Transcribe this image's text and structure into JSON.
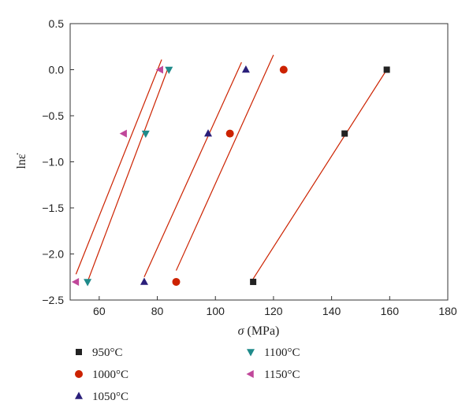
{
  "chart_data": {
    "type": "scatter",
    "xlabel": "σ (MPa)",
    "ylabel": "lnε̇",
    "xlim": [
      50,
      180
    ],
    "ylim": [
      -2.5,
      0.5
    ],
    "x_ticks": [
      60,
      80,
      100,
      120,
      140,
      160,
      180
    ],
    "y_ticks": [
      0.5,
      0.0,
      -0.5,
      -1.0,
      -1.5,
      -2.0,
      -2.5
    ],
    "x_tick_labels": [
      "60",
      "80",
      "100",
      "120",
      "140",
      "160",
      "180"
    ],
    "y_tick_labels": [
      "0.5",
      "0.0",
      "−0.5",
      "−1.0",
      "−1.5",
      "−2.0",
      "−2.5"
    ],
    "grid": false,
    "legend_position": "bottom",
    "fit_line_color": "#cc2200",
    "series": [
      {
        "name": "950°C",
        "marker": "square",
        "color": "#222222",
        "x": [
          113.0,
          144.5,
          159.0
        ],
        "y": [
          -2.303,
          -0.693,
          0.0
        ],
        "fit": {
          "x": [
            113.0,
            159.0
          ],
          "y": [
            -2.27,
            0.0
          ]
        }
      },
      {
        "name": "1000°C",
        "marker": "circle",
        "color": "#cc2200",
        "x": [
          86.5,
          105.0,
          123.5
        ],
        "y": [
          -2.303,
          -0.693,
          0.0
        ],
        "fit": {
          "x": [
            86.5,
            120.0
          ],
          "y": [
            -2.18,
            0.16
          ]
        }
      },
      {
        "name": "1050°C",
        "marker": "triangle-up",
        "color": "#2a1f7a",
        "x": [
          75.5,
          97.5,
          110.5
        ],
        "y": [
          -2.303,
          -0.693,
          0.0
        ],
        "fit": {
          "x": [
            75.5,
            109.0
          ],
          "y": [
            -2.25,
            0.08
          ]
        }
      },
      {
        "name": "1100°C",
        "marker": "triangle-down",
        "color": "#1f8a8a",
        "x": [
          56.0,
          76.0,
          84.0
        ],
        "y": [
          -2.303,
          -0.693,
          0.0
        ],
        "fit": {
          "x": [
            56.0,
            83.5
          ],
          "y": [
            -2.3,
            0.0
          ]
        }
      },
      {
        "name": "1150°C",
        "marker": "triangle-left",
        "color": "#c0479a",
        "x": [
          52.0,
          68.5,
          81.0
        ],
        "y": [
          -2.303,
          -0.693,
          0.0
        ],
        "fit": {
          "x": [
            52.0,
            81.5
          ],
          "y": [
            -2.22,
            0.11
          ]
        }
      }
    ]
  }
}
